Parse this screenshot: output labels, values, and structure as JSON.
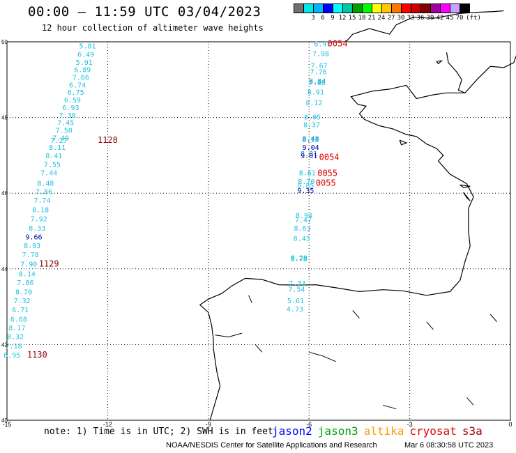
{
  "header": {
    "title": "00:00 – 11:59 UTC 03/04/2023",
    "subtitle": "12 hour collection of altimeter wave heights"
  },
  "legend": {
    "unit": "(ft)",
    "items": [
      {
        "label": "",
        "color": "#707070"
      },
      {
        "label": "3",
        "color": "#00e8e8"
      },
      {
        "label": "6",
        "color": "#00b4ff"
      },
      {
        "label": "9",
        "color": "#0000ff"
      },
      {
        "label": "12",
        "color": "#00ffff"
      },
      {
        "label": "15",
        "color": "#00c8a0"
      },
      {
        "label": "18",
        "color": "#00a000"
      },
      {
        "label": "21",
        "color": "#00ff00"
      },
      {
        "label": "24",
        "color": "#ffff00"
      },
      {
        "label": "27",
        "color": "#ffc800"
      },
      {
        "label": "30",
        "color": "#ff7800"
      },
      {
        "label": "33",
        "color": "#ff0000"
      },
      {
        "label": "36",
        "color": "#c80000"
      },
      {
        "label": "39",
        "color": "#800000"
      },
      {
        "label": "42",
        "color": "#a000a0"
      },
      {
        "label": "45",
        "color": "#ff00ff"
      },
      {
        "label": "70",
        "color": "#c8a0ff"
      },
      {
        "label": "",
        "color": "#000000"
      }
    ]
  },
  "map": {
    "lon_range": [
      -15,
      0
    ],
    "lat_range": [
      40,
      50
    ],
    "lon_ticks": [
      "-15",
      "-12",
      "-9",
      "-6",
      "-3",
      "0"
    ],
    "lat_ticks": [
      "50",
      "48",
      "46",
      "44",
      "42",
      "40"
    ],
    "colors": {
      "light": "#20c0e0",
      "mid": "#0090d0",
      "dark": "#0000a0",
      "time_dark": "#900000",
      "time_red": "#e00000"
    },
    "track_west": {
      "points": [
        {
          "lon": -12.6,
          "lat": 49.9,
          "v": "5.81",
          "c": "light"
        },
        {
          "lon": -12.65,
          "lat": 49.68,
          "v": "6.49",
          "c": "light"
        },
        {
          "lon": -12.7,
          "lat": 49.47,
          "v": "5.91",
          "c": "light"
        },
        {
          "lon": -12.75,
          "lat": 49.27,
          "v": "6.89",
          "c": "light"
        },
        {
          "lon": -12.8,
          "lat": 49.07,
          "v": "7.66",
          "c": "light"
        },
        {
          "lon": -12.9,
          "lat": 48.87,
          "v": "6.74",
          "c": "light"
        },
        {
          "lon": -12.95,
          "lat": 48.67,
          "v": "6.75",
          "c": "light"
        },
        {
          "lon": -13.05,
          "lat": 48.47,
          "v": "6.59",
          "c": "light"
        },
        {
          "lon": -13.1,
          "lat": 48.27,
          "v": "6.93",
          "c": "light"
        },
        {
          "lon": -13.2,
          "lat": 48.07,
          "v": "7.38",
          "c": "light"
        },
        {
          "lon": -13.25,
          "lat": 47.87,
          "v": "7.45",
          "c": "light"
        },
        {
          "lon": -13.3,
          "lat": 47.67,
          "v": "7.50",
          "c": "light"
        },
        {
          "lon": -13.4,
          "lat": 47.47,
          "v": "7.49",
          "c": "light"
        },
        {
          "lon": -13.45,
          "lat": 47.4,
          "v": "7.27",
          "c": "light"
        },
        {
          "lon": -13.5,
          "lat": 47.22,
          "v": "8.11",
          "c": "light"
        },
        {
          "lon": -13.6,
          "lat": 47.0,
          "v": "8.41",
          "c": "light"
        },
        {
          "lon": -13.65,
          "lat": 46.77,
          "v": "7.55",
          "c": "light"
        },
        {
          "lon": -13.75,
          "lat": 46.55,
          "v": "7.44",
          "c": "light"
        },
        {
          "lon": -13.85,
          "lat": 46.27,
          "v": "8.48",
          "c": "light"
        },
        {
          "lon": -13.9,
          "lat": 46.05,
          "v": "7.86",
          "c": "light"
        },
        {
          "lon": -13.95,
          "lat": 45.82,
          "v": "7.74",
          "c": "light"
        },
        {
          "lon": -14.0,
          "lat": 45.57,
          "v": "8.18",
          "c": "light"
        },
        {
          "lon": -14.05,
          "lat": 45.33,
          "v": "7.92",
          "c": "light"
        },
        {
          "lon": -14.1,
          "lat": 45.08,
          "v": "8.33",
          "c": "light"
        },
        {
          "lon": -14.2,
          "lat": 44.85,
          "v": "9.66",
          "c": "dark"
        },
        {
          "lon": -14.25,
          "lat": 44.62,
          "v": "8.93",
          "c": "light"
        },
        {
          "lon": -14.3,
          "lat": 44.38,
          "v": "7.78",
          "c": "light"
        },
        {
          "lon": -14.35,
          "lat": 44.13,
          "v": "7.90",
          "c": "light"
        },
        {
          "lon": -14.4,
          "lat": 43.88,
          "v": "8.14",
          "c": "light"
        },
        {
          "lon": -14.45,
          "lat": 43.65,
          "v": "7.86",
          "c": "light"
        },
        {
          "lon": -14.5,
          "lat": 43.4,
          "v": "8.70",
          "c": "light"
        },
        {
          "lon": -14.55,
          "lat": 43.17,
          "v": "7.32",
          "c": "light"
        },
        {
          "lon": -14.6,
          "lat": 42.93,
          "v": "6.71",
          "c": "light"
        },
        {
          "lon": -14.65,
          "lat": 42.68,
          "v": "6.68",
          "c": "light"
        },
        {
          "lon": -14.7,
          "lat": 42.45,
          "v": "8.17",
          "c": "light"
        },
        {
          "lon": -14.75,
          "lat": 42.22,
          "v": "8.32",
          "c": "light"
        },
        {
          "lon": -14.8,
          "lat": 41.97,
          "v": "7.18",
          "c": "light"
        },
        {
          "lon": -14.85,
          "lat": 41.73,
          "v": "6.95",
          "c": "light"
        }
      ],
      "times": [
        {
          "lon": -12.0,
          "lat": 47.4,
          "t": "1128",
          "c": "time_dark"
        },
        {
          "lon": -13.75,
          "lat": 44.13,
          "t": "1129",
          "c": "time_dark"
        },
        {
          "lon": -14.1,
          "lat": 41.73,
          "t": "1130",
          "c": "time_dark"
        }
      ]
    },
    "track_east": {
      "points": [
        {
          "lon": -5.6,
          "lat": 49.95,
          "v": "6.41",
          "c": "light"
        },
        {
          "lon": -5.65,
          "lat": 49.7,
          "v": "7.98",
          "c": "light"
        },
        {
          "lon": -5.7,
          "lat": 49.38,
          "v": "7.67",
          "c": "light"
        },
        {
          "lon": -5.72,
          "lat": 49.22,
          "v": "7.76",
          "c": "light"
        },
        {
          "lon": -5.75,
          "lat": 48.97,
          "v": "8.84",
          "c": "mid"
        },
        {
          "lon": -5.76,
          "lat": 48.93,
          "v": "7.88",
          "c": "light"
        },
        {
          "lon": -5.8,
          "lat": 48.68,
          "v": "8.91",
          "c": "light"
        },
        {
          "lon": -5.85,
          "lat": 48.4,
          "v": "8.12",
          "c": "light"
        },
        {
          "lon": -5.9,
          "lat": 48.02,
          "v": "8.05",
          "c": "light"
        },
        {
          "lon": -5.92,
          "lat": 47.82,
          "v": "8.37",
          "c": "light"
        },
        {
          "lon": -5.95,
          "lat": 47.45,
          "v": "8.48",
          "c": "mid"
        },
        {
          "lon": -5.96,
          "lat": 47.42,
          "v": "8.13",
          "c": "light"
        },
        {
          "lon": -5.95,
          "lat": 47.22,
          "v": "9.04",
          "c": "dark"
        },
        {
          "lon": -6.0,
          "lat": 47.05,
          "v": "8.81",
          "c": "mid"
        },
        {
          "lon": -6.0,
          "lat": 47.0,
          "v": "9.01",
          "c": "dark"
        },
        {
          "lon": -6.05,
          "lat": 46.55,
          "v": "8.61",
          "c": "light"
        },
        {
          "lon": -6.08,
          "lat": 46.32,
          "v": "8.70",
          "c": "light"
        },
        {
          "lon": -6.1,
          "lat": 46.22,
          "v": "8.85",
          "c": "light"
        },
        {
          "lon": -6.1,
          "lat": 46.08,
          "v": "9.35",
          "c": "dark"
        },
        {
          "lon": -6.15,
          "lat": 45.42,
          "v": "8.94",
          "c": "light"
        },
        {
          "lon": -6.17,
          "lat": 45.3,
          "v": "7.47",
          "c": "light"
        },
        {
          "lon": -6.2,
          "lat": 45.08,
          "v": "8.63",
          "c": "light"
        },
        {
          "lon": -6.22,
          "lat": 44.82,
          "v": "8.43",
          "c": "light"
        },
        {
          "lon": -6.3,
          "lat": 44.3,
          "v": "8.28",
          "c": "light"
        },
        {
          "lon": -6.3,
          "lat": 44.27,
          "v": "8.78",
          "c": "light"
        },
        {
          "lon": -6.35,
          "lat": 43.63,
          "v": "7.33",
          "c": "light"
        },
        {
          "lon": -6.37,
          "lat": 43.47,
          "v": "7.54",
          "c": "light"
        },
        {
          "lon": -6.4,
          "lat": 43.17,
          "v": "5.61",
          "c": "light"
        },
        {
          "lon": -6.42,
          "lat": 42.95,
          "v": "4.73",
          "c": "light"
        }
      ],
      "times": [
        {
          "lon": -5.15,
          "lat": 49.95,
          "t": "0054",
          "c": "time_red"
        },
        {
          "lon": -5.4,
          "lat": 46.95,
          "t": "0054",
          "c": "time_red"
        },
        {
          "lon": -5.45,
          "lat": 46.53,
          "t": "0055",
          "c": "time_red"
        },
        {
          "lon": -5.5,
          "lat": 46.27,
          "t": "0055",
          "c": "time_red"
        }
      ]
    }
  },
  "footer": {
    "note": "note:  1) Time is in UTC; 2) SWH is in feet",
    "satellites": [
      {
        "name": "jason2",
        "color": "#0000ff"
      },
      {
        "name": "jason3",
        "color": "#00a000"
      },
      {
        "name": "altika",
        "color": "#ff9900"
      },
      {
        "name": "cryosat",
        "color": "#e00000"
      },
      {
        "name": "s3a",
        "color": "#a00000"
      }
    ],
    "credit": "NOAA/NESDIS Center for Satellite Applications and Research",
    "datestamp": "Mar  6 08:30:58 UTC 2023"
  }
}
